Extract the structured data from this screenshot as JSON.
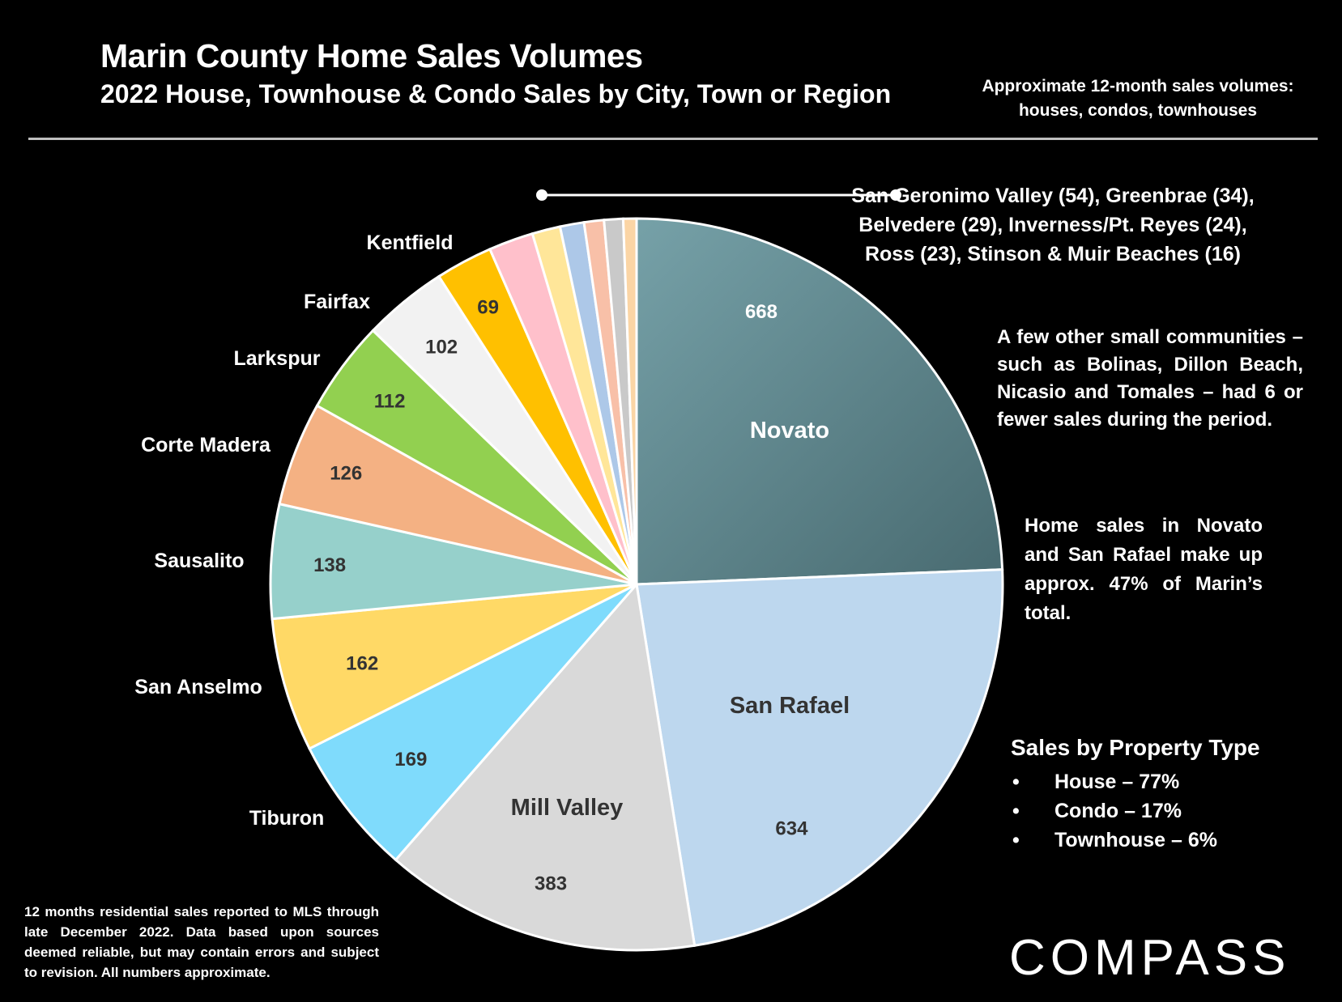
{
  "header": {
    "title": "Marin County Home Sales Volumes",
    "subtitle": "2022 House, Townhouse & Condo Sales by City, Town or Region",
    "side_note": "Approximate 12-month sales volumes: houses, condos, townhouses"
  },
  "chart_data": {
    "type": "pie",
    "title": "Marin County Home Sales Volumes",
    "subtitle": "2022 House, Townhouse & Condo Sales by City, Town or Region",
    "start_angle_deg": 0,
    "direction": "clockwise",
    "slices": [
      {
        "name": "Novato",
        "value": 668,
        "color": "#5f868d",
        "label_color": "#ffffff"
      },
      {
        "name": "San Rafael",
        "value": 634,
        "color": "#bdd7ee",
        "label_color": "#333333"
      },
      {
        "name": "Mill Valley",
        "value": 383,
        "color": "#d9d9d9",
        "label_color": "#333333"
      },
      {
        "name": "Tiburon",
        "value": 169,
        "color": "#7fdbfc",
        "label_color": "#333333"
      },
      {
        "name": "San Anselmo",
        "value": 162,
        "color": "#ffd966",
        "label_color": "#333333"
      },
      {
        "name": "Sausalito",
        "value": 138,
        "color": "#96d0cb",
        "label_color": "#333333"
      },
      {
        "name": "Corte Madera",
        "value": 126,
        "color": "#f4b183",
        "label_color": "#333333"
      },
      {
        "name": "Larkspur",
        "value": 112,
        "color": "#92d050",
        "label_color": "#333333"
      },
      {
        "name": "Fairfax",
        "value": 102,
        "color": "#f2f2f2",
        "label_color": "#333333"
      },
      {
        "name": "Kentfield",
        "value": 69,
        "color": "#ffc000",
        "label_color": "#333333"
      },
      {
        "name": "San Geronimo Valley",
        "value": 54,
        "color": "#ffc0cb",
        "label_color": ""
      },
      {
        "name": "Greenbrae",
        "value": 34,
        "color": "#ffe699",
        "label_color": ""
      },
      {
        "name": "Belvedere",
        "value": 29,
        "color": "#adc8e8",
        "label_color": ""
      },
      {
        "name": "Inverness/Pt. Reyes",
        "value": 24,
        "color": "#f8c0a8",
        "label_color": ""
      },
      {
        "name": "Ross",
        "value": 23,
        "color": "#c9c9c9",
        "label_color": ""
      },
      {
        "name": "Stinson & Muir Beaches",
        "value": 16,
        "color": "#fbd5a5",
        "label_color": ""
      }
    ],
    "small_group_label": "San Geronimo Valley (54), Greenbrae (34), Belvedere (29), Inverness/Pt. Reyes (24), Ross (23), Stinson & Muir Beaches (16)"
  },
  "notes": {
    "small_communities": "A few other small communities – such as Bolinas, Dillon Beach, Nicasio and Tomales – had 6 or fewer sales during the period.",
    "novato_san_rafael": "Home sales in Novato and San Rafael make up approx. 47% of Marin’s total."
  },
  "property_type": {
    "title": "Sales by Property Type",
    "items": [
      "House – 77%",
      "Condo – 17%",
      "Townhouse – 6%"
    ]
  },
  "footnote": "12 months residential sales reported to MLS through late December 2022. Data based upon sources deemed reliable, but may contain errors and subject to revision. All numbers approximate.",
  "logo": "COMPASS"
}
